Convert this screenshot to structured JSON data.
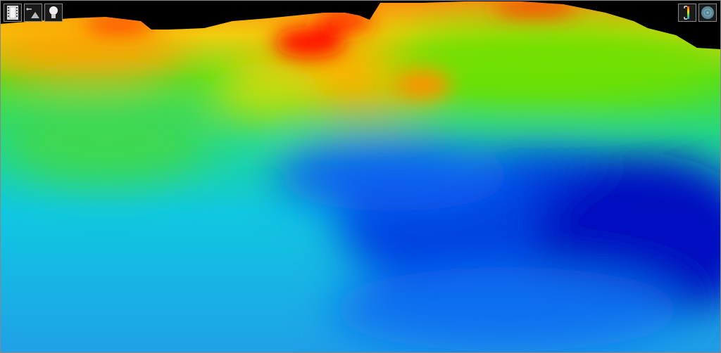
{
  "viewer": {
    "type": "3d-bathymetry-view",
    "colormap": [
      "#ff0000",
      "#ff8a00",
      "#ffe000",
      "#00e000",
      "#00e0e0",
      "#0050ff",
      "#0000c8"
    ],
    "background": "#000000"
  },
  "toolbar_left": [
    {
      "icon": "film-strip-icon",
      "action": "animation"
    },
    {
      "icon": "light-direction-icon",
      "action": "lighting-direction"
    },
    {
      "icon": "light-bulb-icon",
      "action": "lighting"
    }
  ],
  "toolbar_right": [
    {
      "icon": "color-scale-icon",
      "action": "color-scale"
    },
    {
      "icon": "compass-disc-icon",
      "action": "orientation"
    }
  ]
}
